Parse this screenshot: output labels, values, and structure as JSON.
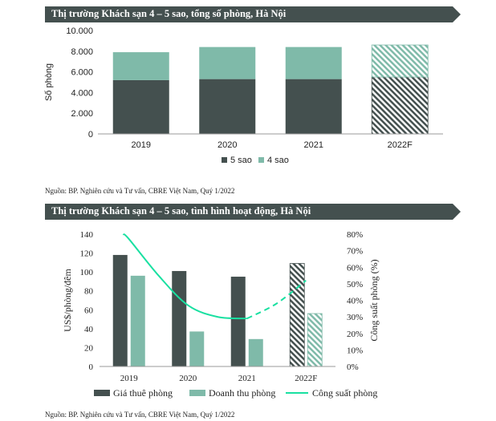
{
  "colors": {
    "dark": "#44504f",
    "light": "#7fbaa9",
    "line": "#19e0a1",
    "banner": "#44504f"
  },
  "top": {
    "title": "Thị trường Khách sạn 4 – 5 sao, tổng số phòng, Hà Nội",
    "source": "Nguồn: BP. Nghiên cứu và Tư vấn, CBRE Việt Nam, Quý 1/2022"
  },
  "bottom": {
    "title": "Thị trường Khách sạn 4 – 5 sao, tình hình hoạt động, Hà Nội",
    "source": "Nguồn: BP. Nghiên cứu và Tư vấn, CBRE Việt Nam, Quý 1/2022"
  },
  "chart_data": [
    {
      "type": "bar",
      "stacked": true,
      "title": "Thị trường Khách sạn 4 – 5 sao, tổng số phòng, Hà Nội",
      "categories": [
        "2019",
        "2020",
        "2021",
        "2022F"
      ],
      "forecast_categories": [
        "2022F"
      ],
      "ylabel": "Số phòng",
      "ylim": [
        0,
        10000
      ],
      "yticks": [
        "0",
        "2.000",
        "4.000",
        "6.000",
        "8.000",
        "10.000"
      ],
      "series": [
        {
          "name": "5 sao",
          "values": [
            5200,
            5300,
            5300,
            5500
          ]
        },
        {
          "name": "4 sao",
          "values": [
            2700,
            3100,
            3100,
            3100
          ]
        }
      ],
      "legend": "bottom",
      "grid": false
    },
    {
      "type": "bar",
      "title": "Thị trường Khách sạn 4 – 5 sao, tình hình hoạt động, Hà Nội",
      "categories": [
        "2019",
        "2020",
        "2021",
        "2022F"
      ],
      "forecast_categories": [
        "2022F"
      ],
      "ylabel": "US$/phòng/đêm",
      "ylim": [
        0,
        140
      ],
      "yticks": [
        "0",
        "20",
        "40",
        "60",
        "80",
        "100",
        "120",
        "140"
      ],
      "y2label": "Công suất phòng (%)",
      "y2lim": [
        0,
        80
      ],
      "y2ticks": [
        "0%",
        "10%",
        "20%",
        "30%",
        "40%",
        "50%",
        "60%",
        "70%",
        "80%"
      ],
      "series": [
        {
          "name": "Giá thuê phòng",
          "values": [
            118,
            101,
            95,
            109
          ]
        },
        {
          "name": "Doanh thu phòng",
          "values": [
            96,
            37,
            29,
            56
          ]
        }
      ],
      "line_series": {
        "name": "Công suất phòng",
        "axis": "right",
        "x": [
          "2018.9",
          "2019",
          "2019.5",
          "2020",
          "2020.5",
          "2021",
          "2021.5",
          "2022F"
        ],
        "values": [
          80,
          77,
          55,
          37,
          30,
          29,
          38,
          52
        ],
        "forecast_from": "2021"
      },
      "legend": "bottom",
      "grid": false
    }
  ]
}
